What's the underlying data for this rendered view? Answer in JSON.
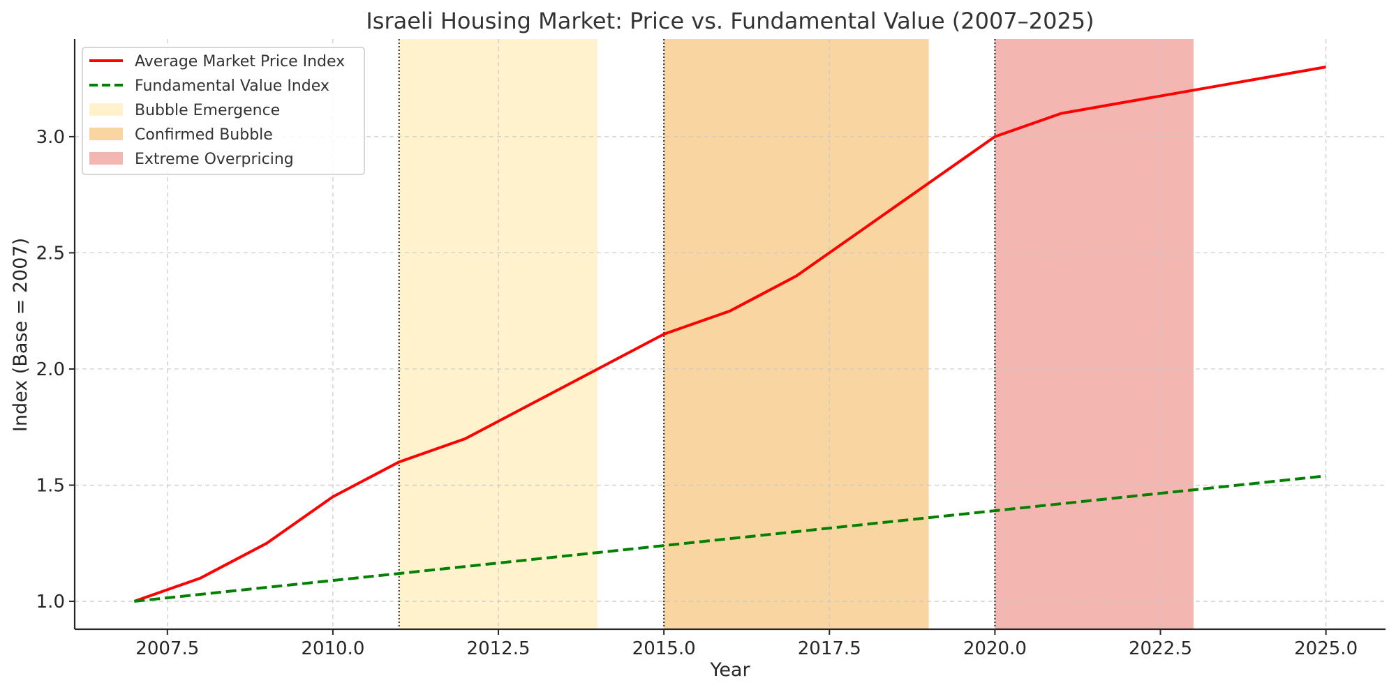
{
  "chart_data": {
    "type": "line",
    "title": "Israeli Housing Market: Price vs. Fundamental Value (2007–2025)",
    "xlabel": "Year",
    "ylabel": "Index (Base = 2007)",
    "xlim": [
      2006.1,
      2025.9
    ],
    "ylim": [
      0.88,
      3.42
    ],
    "xticks": [
      2007.5,
      2010.0,
      2012.5,
      2015.0,
      2017.5,
      2020.0,
      2022.5,
      2025.0
    ],
    "xtick_labels": [
      "2007.5",
      "2010.0",
      "2012.5",
      "2015.0",
      "2017.5",
      "2020.0",
      "2022.5",
      "2025.0"
    ],
    "yticks": [
      1.0,
      1.5,
      2.0,
      2.5,
      3.0
    ],
    "ytick_labels": [
      "1.0",
      "1.5",
      "2.0",
      "2.5",
      "3.0"
    ],
    "grid": true,
    "legend_position": "top-left",
    "series": [
      {
        "name": "Average Market Price Index",
        "color": "#ff0000",
        "style": "solid",
        "x": [
          2007,
          2008,
          2009,
          2010,
          2011,
          2012,
          2013,
          2014,
          2015,
          2016,
          2017,
          2018,
          2019,
          2020,
          2021,
          2022,
          2023,
          2024,
          2025
        ],
        "values": [
          1.0,
          1.1,
          1.25,
          1.45,
          1.6,
          1.7,
          1.85,
          2.0,
          2.15,
          2.25,
          2.4,
          2.6,
          2.8,
          3.0,
          3.1,
          3.15,
          3.2,
          3.25,
          3.3
        ]
      },
      {
        "name": "Fundamental Value Index",
        "color": "#008000",
        "style": "dashed",
        "x": [
          2007,
          2008,
          2009,
          2010,
          2011,
          2012,
          2013,
          2014,
          2015,
          2016,
          2017,
          2018,
          2019,
          2020,
          2021,
          2022,
          2023,
          2024,
          2025
        ],
        "values": [
          1.0,
          1.03,
          1.06,
          1.09,
          1.12,
          1.15,
          1.18,
          1.21,
          1.24,
          1.27,
          1.3,
          1.33,
          1.36,
          1.39,
          1.42,
          1.45,
          1.48,
          1.51,
          1.54
        ]
      }
    ],
    "regions": [
      {
        "name": "Bubble Emergence",
        "start": 2011,
        "end": 2014,
        "color": "#fff2cc"
      },
      {
        "name": "Confirmed Bubble",
        "start": 2015,
        "end": 2019,
        "color": "#f9d6a1"
      },
      {
        "name": "Extreme Overpricing",
        "start": 2020,
        "end": 2023,
        "color": "#f4b6b0"
      }
    ],
    "vlines": [
      2011,
      2015,
      2020
    ]
  }
}
